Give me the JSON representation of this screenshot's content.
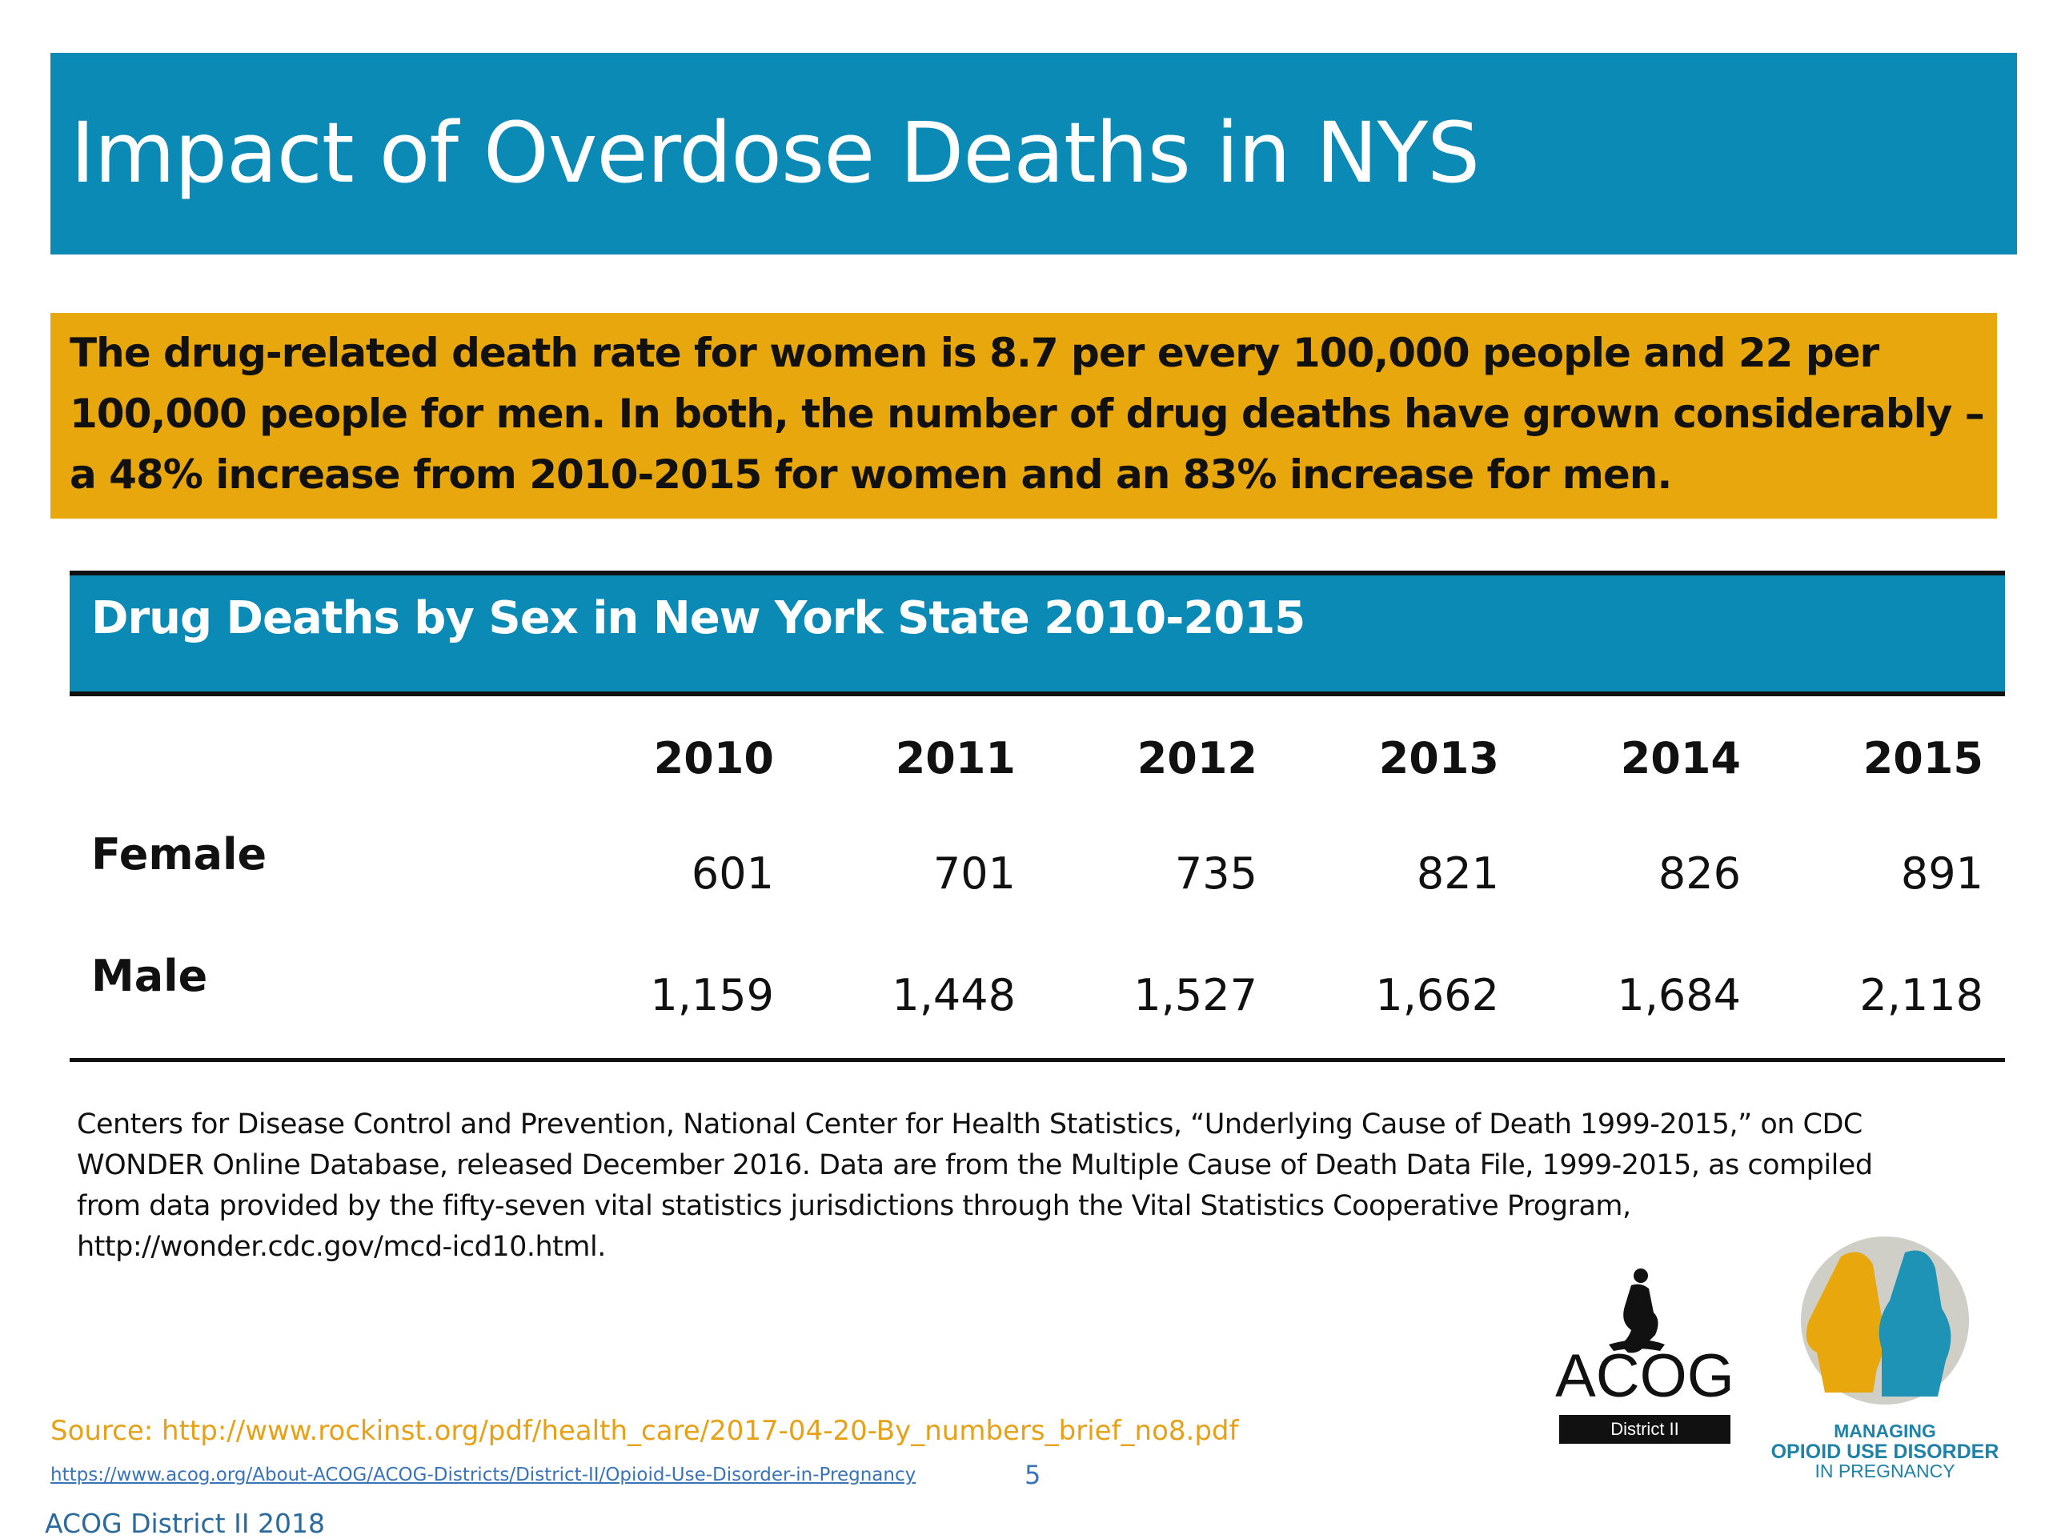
{
  "header": {
    "title": "Impact of Overdose Deaths in NYS"
  },
  "highlight": {
    "lines": [
      "The drug-related death rate for women is 8.7 per every 100,000 people and 22 per",
      "100,000 people for men. In both, the number of drug deaths have grown considerably –",
      "a 48% increase from 2010-2015 for women and an 83% increase for men."
    ]
  },
  "table": {
    "title": "Drug Deaths by Sex in New York State 2010-2015",
    "columns": [
      "2010",
      "2011",
      "2012",
      "2013",
      "2014",
      "2015"
    ],
    "rows": [
      {
        "label": "Female",
        "values": [
          "601",
          "701",
          "735",
          "821",
          "826",
          "891"
        ]
      },
      {
        "label": "Male",
        "values": [
          "1,159",
          "1,448",
          "1,527",
          "1,662",
          "1,684",
          "2,118"
        ]
      }
    ]
  },
  "citation": {
    "lines": [
      "Centers for Disease Control and Prevention, National Center for Health Statistics, “Underlying Cause of Death 1999-2015,” on CDC",
      "WONDER Online Database, released December 2016. Data are from the Multiple Cause of Death Data File, 1999-2015, as compiled",
      "from data provided by the fifty-seven vital statistics jurisdictions through the Vital Statistics Cooperative Program,",
      "http://wonder.cdc.gov/mcd-icd10.html."
    ]
  },
  "footer": {
    "source": "Source: http://www.rockinst.org/pdf/health_care/2017-04-20-By_numbers_brief_no8.pdf",
    "link": "https://www.acog.org/About-ACOG/ACOG-Districts/District-II/Opioid-Use-Disorder-in-Pregnancy",
    "page_number": "5",
    "organization": "ACOG District II 2018"
  },
  "logos": {
    "acog": {
      "name": "ACOG",
      "district": "District II"
    },
    "oud": {
      "lines": [
        "MANAGING",
        "OPIOID USE DISORDER",
        "IN PREGNANCY"
      ]
    }
  }
}
